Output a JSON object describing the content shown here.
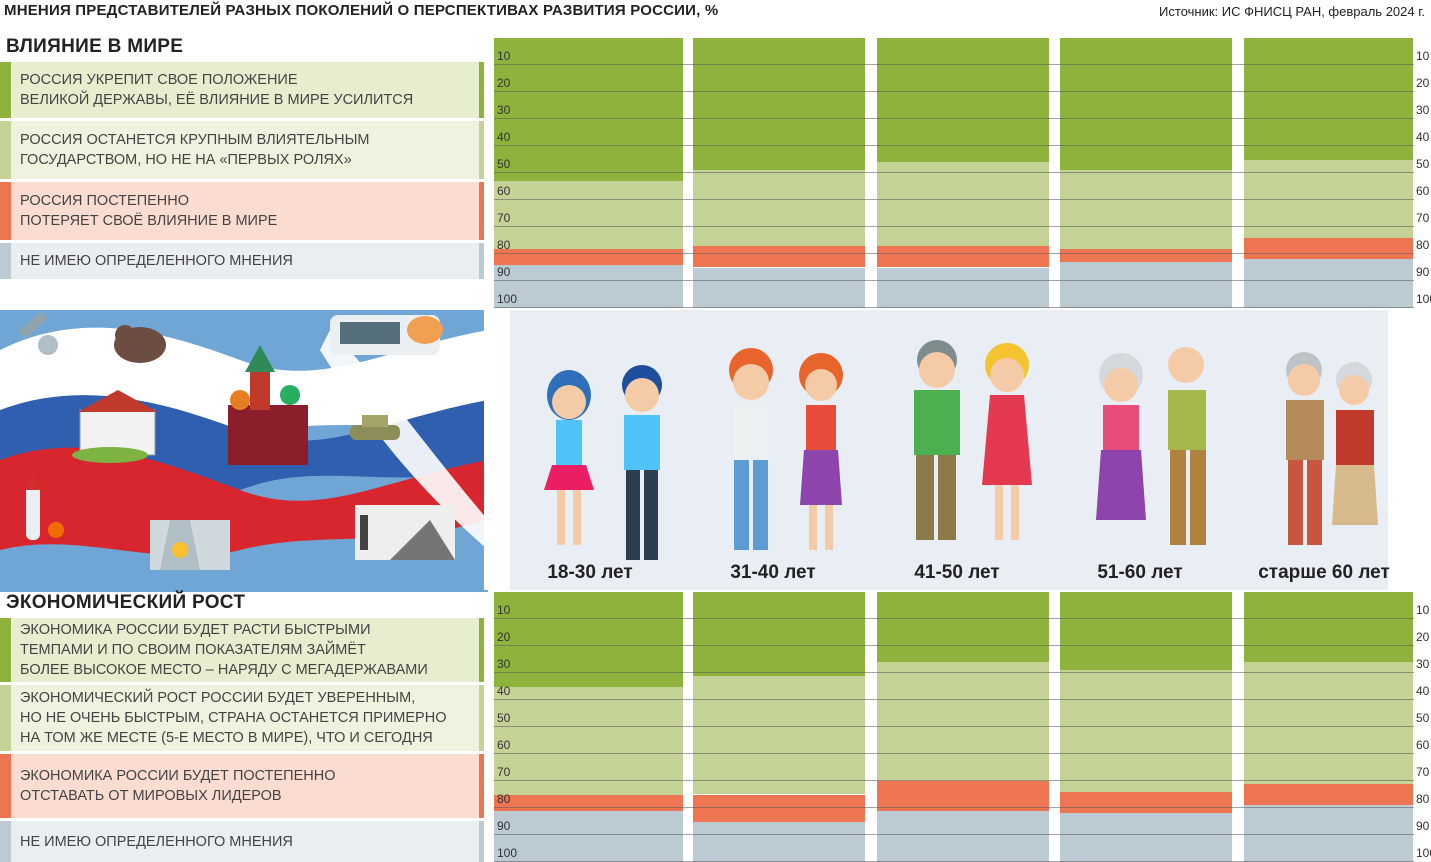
{
  "header": {
    "title": "МНЕНИЯ ПРЕДСТАВИТЕЛЕЙ РАЗНЫХ ПОКОЛЕНИЙ О ПЕРСПЕКТИВАХ РАЗВИТИЯ РОССИИ, %",
    "source": "Источник: ИС ФНИСЦ РАН, февраль 2024 г."
  },
  "colors": {
    "strong": "#8db33c",
    "medium": "#c5d296",
    "negative": "#ee7552",
    "none": "#bccad3",
    "legend_strong_bg": "#e7edcf",
    "legend_medium_bg": "#eef2df",
    "legend_negative_bg": "#fbdcd0",
    "legend_none_bg": "#e9eef1",
    "panel_bg": "#e8eef3"
  },
  "age_groups": [
    "18-30 лет",
    "31-40 лет",
    "41-50 лет",
    "51-60 лет",
    "старше 60 лет"
  ],
  "ticks": [
    "10",
    "20",
    "30",
    "40",
    "50",
    "60",
    "70",
    "80",
    "90",
    "100"
  ],
  "chart_data": [
    {
      "type": "bar",
      "stacked": true,
      "orientation": "vertical-top-down",
      "title": "ВЛИЯНИЕ В МИРЕ",
      "categories": [
        "18-30 лет",
        "31-40 лет",
        "41-50 лет",
        "51-60 лет",
        "старше 60 лет"
      ],
      "ylim": [
        0,
        100
      ],
      "series": [
        {
          "name": "РОССИЯ УКРЕПИТ СВОЕ ПОЛОЖЕНИЕ\nВЕЛИКОЙ ДЕРЖАВЫ, ЕЁ ВЛИЯНИЕ В МИРЕ УСИЛИТСЯ",
          "color": "#8db33c",
          "values": [
            53,
            49,
            46,
            49,
            45
          ]
        },
        {
          "name": "РОССИЯ ОСТАНЕТСЯ КРУПНЫМ ВЛИЯТЕЛЬНЫМ\nГОСУДАРСТВОМ, НО НЕ НА «ПЕРВЫХ РОЛЯХ»",
          "color": "#c5d296",
          "values": [
            25,
            28,
            31,
            29,
            29
          ]
        },
        {
          "name": "РОССИЯ ПОСТЕПЕННО\nПОТЕРЯЕТ СВОЁ ВЛИЯНИЕ В МИРЕ",
          "color": "#ee7552",
          "values": [
            6,
            8,
            8,
            5,
            8
          ]
        },
        {
          "name": "НЕ ИМЕЮ ОПРЕДЕЛЕННОГО МНЕНИЯ",
          "color": "#bccad3",
          "values": [
            16,
            15,
            15,
            17,
            18
          ]
        }
      ]
    },
    {
      "type": "bar",
      "stacked": true,
      "orientation": "vertical-top-down",
      "title": "ЭКОНОМИЧЕСКИЙ РОСТ",
      "categories": [
        "18-30 лет",
        "31-40 лет",
        "41-50 лет",
        "51-60 лет",
        "старше 60 лет"
      ],
      "ylim": [
        0,
        100
      ],
      "series": [
        {
          "name": "ЭКОНОМИКА РОССИИ БУДЕТ РАСТИ БЫСТРЫМИ\nТЕМПАМИ И ПО СВОИМ ПОКАЗАТЕЛЯМ ЗАЙМЁТ\nБОЛЕЕ ВЫСОКОЕ МЕСТО – НАРЯДУ С МЕГАДЕРЖАВАМИ",
          "color": "#8db33c",
          "values": [
            35,
            31,
            26,
            29,
            26
          ]
        },
        {
          "name": "ЭКОНОМИЧЕСКИЙ РОСТ РОССИИ БУДЕТ УВЕРЕННЫМ,\nНО НЕ ОЧЕНЬ БЫСТРЫМ, СТРАНА ОСТАНЕТСЯ ПРИМЕРНО\nНА ТОМ ЖЕ МЕСТЕ (5-Е МЕСТО В МИРЕ), ЧТО И СЕГОДНЯ",
          "color": "#c5d296",
          "values": [
            40,
            44,
            44,
            45,
            45
          ]
        },
        {
          "name": "ЭКОНОМИКА РОССИИ БУДЕТ ПОСТЕПЕННО\nОТСТАВАТЬ ОТ МИРОВЫХ ЛИДЕРОВ",
          "color": "#ee7552",
          "values": [
            6,
            10,
            11,
            8,
            8
          ]
        },
        {
          "name": "НЕ ИМЕЮ ОПРЕДЕЛЕННОГО МНЕНИЯ",
          "color": "#bccad3",
          "values": [
            19,
            15,
            19,
            18,
            21
          ]
        }
      ]
    }
  ]
}
